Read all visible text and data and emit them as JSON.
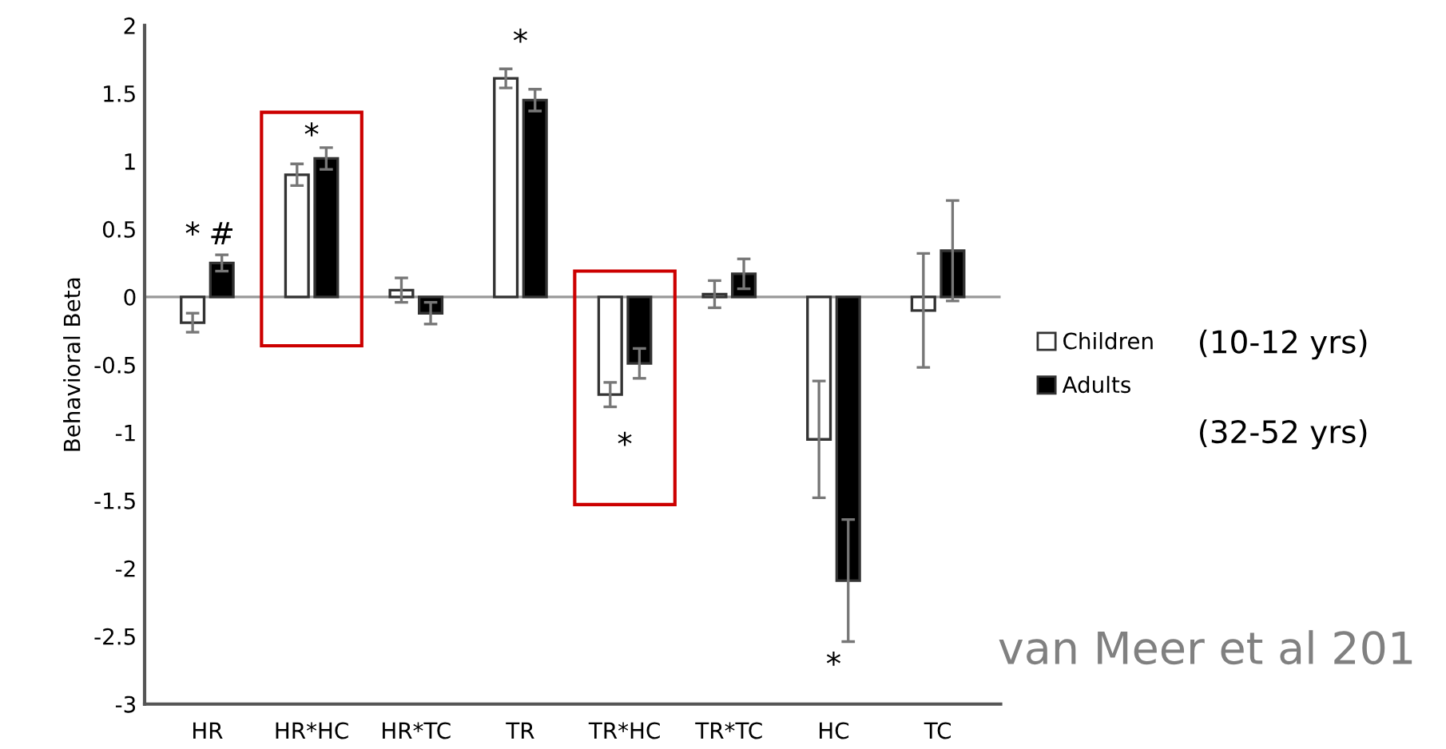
{
  "chart_data": {
    "type": "bar",
    "ylabel": "Behavioral Beta",
    "categories": [
      "HR",
      "HR*HC",
      "HR*TC",
      "TR",
      "TR*HC",
      "TR*TC",
      "HC",
      "TC"
    ],
    "series": [
      {
        "name": "Children",
        "color": "#ffffff",
        "values": [
          -0.19,
          0.9,
          0.05,
          1.61,
          -0.72,
          0.02,
          -1.05,
          -0.1
        ],
        "errors": [
          0.07,
          0.08,
          0.09,
          0.07,
          0.09,
          0.1,
          0.43,
          0.42
        ]
      },
      {
        "name": "Adults",
        "color": "#000000",
        "values": [
          0.25,
          1.02,
          -0.12,
          1.45,
          -0.49,
          0.17,
          -2.09,
          0.34
        ],
        "errors": [
          0.06,
          0.08,
          0.08,
          0.08,
          0.11,
          0.11,
          0.45,
          0.37
        ]
      }
    ],
    "ylim": [
      -3,
      2
    ],
    "yticks": [
      {
        "value": -3,
        "label": "-3"
      },
      {
        "value": -2.5,
        "label": "-2.5"
      },
      {
        "value": -2,
        "label": "-2"
      },
      {
        "value": -1.5,
        "label": "-1.5"
      },
      {
        "value": -1,
        "label": "-1"
      },
      {
        "value": -0.5,
        "label": "-0.5"
      },
      0,
      0.5,
      1,
      1.5,
      2
    ],
    "ref_lines": [
      {
        "axis": "y",
        "value": 0,
        "color": "#999999"
      }
    ],
    "grid": false,
    "legend": "right",
    "annotations": [
      "*",
      "#",
      "*",
      "*",
      "*",
      "*",
      "(10-12 yrs)",
      "(32-52 yrs)",
      "van Meer et al 201"
    ]
  }
}
